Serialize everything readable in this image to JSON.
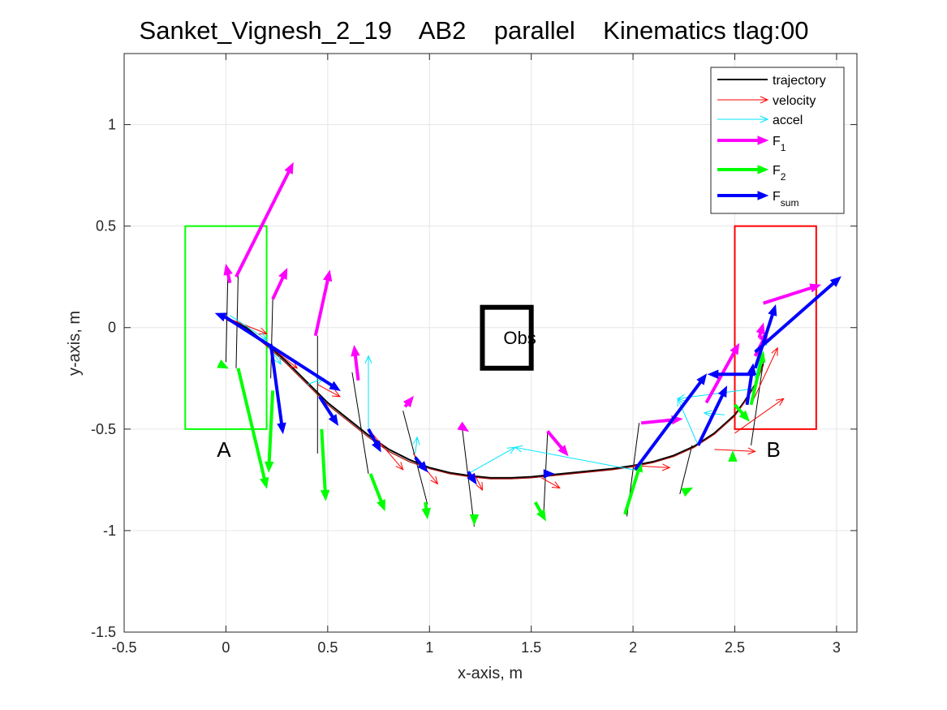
{
  "chart_data": {
    "type": "line",
    "title": "Sanket_Vignesh_2_19    AB2    parallel    Kinematics tlag:00",
    "xlabel": "x-axis, m",
    "ylabel": "y-axis, m",
    "xlim": [
      -0.5,
      3.1
    ],
    "ylim": [
      -1.5,
      1.35
    ],
    "xticks": [
      -0.5,
      0,
      0.5,
      1,
      1.5,
      2,
      2.5,
      3
    ],
    "yticks": [
      -1.5,
      -1,
      -0.5,
      0,
      0.5,
      1
    ],
    "xtick_labels": [
      "-0.5",
      "0",
      "0.5",
      "1",
      "1.5",
      "2",
      "2.5",
      "3"
    ],
    "ytick_labels": [
      "-1.5",
      "-1",
      "-0.5",
      "0",
      "0.5",
      "1"
    ],
    "grid": true,
    "legend": {
      "placement": "top-right",
      "entries": [
        {
          "name": "trajectory",
          "sub": "",
          "color": "#000000",
          "style": "line"
        },
        {
          "name": "velocity",
          "sub": "",
          "color": "#ff0000",
          "style": "thin-arrow"
        },
        {
          "name": "accel",
          "sub": "",
          "color": "#00e5ff",
          "style": "thin-arrow"
        },
        {
          "name": "F",
          "sub": "1",
          "color": "#ff00ff",
          "style": "thick-arrow"
        },
        {
          "name": "F",
          "sub": "2",
          "color": "#00ff00",
          "style": "thick-arrow"
        },
        {
          "name": "F",
          "sub": "sum",
          "color": "#0000ff",
          "style": "thick-arrow"
        }
      ]
    },
    "regions": [
      {
        "label": "A",
        "color": "#00ff00",
        "x": [
          -0.2,
          0.2
        ],
        "y": [
          -0.5,
          0.5
        ],
        "label_pos": [
          -0.01,
          -0.6
        ]
      },
      {
        "label": "B",
        "color": "#ff0000",
        "x": [
          2.5,
          2.9
        ],
        "y": [
          -0.5,
          0.5
        ],
        "label_pos": [
          2.69,
          -0.6
        ]
      }
    ],
    "obstacle": {
      "label": "Obs",
      "x": [
        1.26,
        1.5
      ],
      "y": [
        -0.2,
        0.1
      ],
      "color": "#000000"
    },
    "series": [
      {
        "name": "trajectory",
        "color": "#000000",
        "x": [
          0.0,
          0.1,
          0.2,
          0.3,
          0.4,
          0.5,
          0.6,
          0.7,
          0.8,
          0.9,
          1.0,
          1.1,
          1.2,
          1.3,
          1.4,
          1.5,
          1.6,
          1.7,
          1.8,
          1.9,
          2.0,
          2.1,
          2.2,
          2.3,
          2.4,
          2.5,
          2.55,
          2.6,
          2.64
        ],
        "y": [
          0.05,
          0.0,
          -0.08,
          -0.17,
          -0.27,
          -0.37,
          -0.45,
          -0.53,
          -0.6,
          -0.65,
          -0.69,
          -0.715,
          -0.73,
          -0.74,
          -0.74,
          -0.735,
          -0.725,
          -0.715,
          -0.705,
          -0.695,
          -0.68,
          -0.66,
          -0.63,
          -0.585,
          -0.52,
          -0.43,
          -0.36,
          -0.28,
          -0.18
        ]
      },
      {
        "name": "trajectory (velocity-colored)",
        "color": "#a01010",
        "x": [
          0.0,
          0.1,
          0.2,
          0.3,
          0.4,
          0.5,
          0.6,
          0.7,
          0.8,
          0.9,
          1.0,
          1.1,
          1.2,
          1.3,
          1.4,
          1.5,
          1.6,
          1.7,
          1.8,
          1.9,
          2.0,
          2.1,
          2.2,
          2.3,
          2.4,
          2.5,
          2.55,
          2.6,
          2.64
        ],
        "y": [
          0.04,
          -0.01,
          -0.09,
          -0.18,
          -0.28,
          -0.38,
          -0.46,
          -0.54,
          -0.61,
          -0.66,
          -0.695,
          -0.72,
          -0.735,
          -0.745,
          -0.745,
          -0.74,
          -0.73,
          -0.72,
          -0.71,
          -0.7,
          -0.685,
          -0.665,
          -0.635,
          -0.59,
          -0.525,
          -0.435,
          -0.365,
          -0.285,
          -0.185
        ]
      }
    ],
    "thin_sticks": [
      {
        "x": [
          0.01,
          0.0
        ],
        "y": [
          0.28,
          -0.17
        ]
      },
      {
        "x": [
          0.06,
          0.05
        ],
        "y": [
          0.26,
          -0.2
        ]
      },
      {
        "x": [
          0.23,
          0.22
        ],
        "y": [
          0.14,
          -0.25
        ]
      },
      {
        "x": [
          0.45,
          0.45
        ],
        "y": [
          -0.04,
          -0.62
        ]
      },
      {
        "x": [
          0.62,
          0.7
        ],
        "y": [
          -0.22,
          -0.72
        ]
      },
      {
        "x": [
          0.87,
          0.99
        ],
        "y": [
          -0.41,
          -0.87
        ]
      },
      {
        "x": [
          1.16,
          1.22
        ],
        "y": [
          -0.49,
          -0.98
        ]
      },
      {
        "x": [
          1.58,
          1.56
        ],
        "y": [
          -0.52,
          -0.94
        ]
      },
      {
        "x": [
          2.03,
          1.97
        ],
        "y": [
          -0.47,
          -0.93
        ]
      },
      {
        "x": [
          2.29,
          2.23
        ],
        "y": [
          -0.58,
          -0.82
        ]
      },
      {
        "x": [
          2.64,
          2.58
        ],
        "y": [
          -0.17,
          -0.58
        ]
      }
    ],
    "arrows": {
      "velocity": {
        "color": "#ff0000",
        "width": 1,
        "items": [
          {
            "x0": 0.0,
            "y0": 0.05,
            "x1": 0.2,
            "y1": -0.03
          },
          {
            "x0": 0.2,
            "y0": -0.08,
            "x1": 0.35,
            "y1": -0.2
          },
          {
            "x0": 0.45,
            "y0": -0.28,
            "x1": 0.56,
            "y1": -0.34
          },
          {
            "x0": 0.7,
            "y0": -0.5,
            "x1": 0.87,
            "y1": -0.7
          },
          {
            "x0": 0.92,
            "y0": -0.62,
            "x1": 1.04,
            "y1": -0.77
          },
          {
            "x0": 1.22,
            "y0": -0.72,
            "x1": 1.26,
            "y1": -0.8
          },
          {
            "x0": 1.55,
            "y0": -0.74,
            "x1": 1.64,
            "y1": -0.79
          },
          {
            "x0": 2.0,
            "y0": -0.68,
            "x1": 2.18,
            "y1": -0.69
          },
          {
            "x0": 2.4,
            "y0": -0.6,
            "x1": 2.6,
            "y1": -0.61
          },
          {
            "x0": 2.5,
            "y0": -0.52,
            "x1": 2.74,
            "y1": -0.35
          },
          {
            "x0": 2.58,
            "y0": -0.38,
            "x1": 2.71,
            "y1": -0.1
          }
        ]
      },
      "accel": {
        "color": "#00e5ff",
        "width": 1,
        "items": [
          {
            "x0": 0.02,
            "y0": 0.06,
            "x1": 0.2,
            "y1": -0.06
          },
          {
            "x0": 0.2,
            "y0": -0.08,
            "x1": 0.27,
            "y1": -0.18
          },
          {
            "x0": 0.4,
            "y0": -0.28,
            "x1": 0.48,
            "y1": -0.25
          },
          {
            "x0": 0.7,
            "y0": -0.5,
            "x1": 0.7,
            "y1": -0.14
          },
          {
            "x0": 0.93,
            "y0": -0.62,
            "x1": 0.94,
            "y1": -0.54
          },
          {
            "x0": 1.19,
            "y0": -0.72,
            "x1": 1.42,
            "y1": -0.59
          },
          {
            "x0": 2.0,
            "y0": -0.7,
            "x1": 1.42,
            "y1": -0.59
          },
          {
            "x0": 2.32,
            "y0": -0.58,
            "x1": 2.22,
            "y1": -0.35
          },
          {
            "x0": 2.6,
            "y0": -0.3,
            "x1": 2.22,
            "y1": -0.35
          },
          {
            "x0": 2.45,
            "y0": -0.43,
            "x1": 2.35,
            "y1": -0.42
          },
          {
            "x0": 2.6,
            "y0": -0.25,
            "x1": 2.65,
            "y1": -0.05
          }
        ]
      },
      "F1": {
        "color": "#ff00ff",
        "width": 4,
        "items": [
          {
            "x0": 0.02,
            "y0": 0.22,
            "x1": 0.0,
            "y1": 0.31
          },
          {
            "x0": 0.05,
            "y0": 0.25,
            "x1": 0.33,
            "y1": 0.81
          },
          {
            "x0": 0.23,
            "y0": 0.14,
            "x1": 0.3,
            "y1": 0.29
          },
          {
            "x0": 0.44,
            "y0": -0.04,
            "x1": 0.51,
            "y1": 0.28
          },
          {
            "x0": 0.65,
            "y0": -0.26,
            "x1": 0.63,
            "y1": -0.09
          },
          {
            "x0": 0.88,
            "y0": -0.39,
            "x1": 0.92,
            "y1": -0.34
          },
          {
            "x0": 1.16,
            "y0": -0.49,
            "x1": 1.19,
            "y1": -0.51
          },
          {
            "x0": 1.58,
            "y0": -0.51,
            "x1": 1.68,
            "y1": -0.63
          },
          {
            "x0": 2.04,
            "y0": -0.47,
            "x1": 2.24,
            "y1": -0.45
          },
          {
            "x0": 2.36,
            "y0": -0.37,
            "x1": 2.52,
            "y1": -0.08
          },
          {
            "x0": 2.64,
            "y0": 0.12,
            "x1": 2.92,
            "y1": 0.21
          },
          {
            "x0": 2.6,
            "y0": -0.14,
            "x1": 2.66,
            "y1": -0.02
          },
          {
            "x0": 2.62,
            "y0": -0.05,
            "x1": 2.64,
            "y1": 0.02
          }
        ]
      },
      "F2": {
        "color": "#00ff00",
        "width": 4,
        "items": [
          {
            "x0": -0.01,
            "y0": -0.19,
            "x1": 0.01,
            "y1": -0.2
          },
          {
            "x0": 0.06,
            "y0": -0.2,
            "x1": 0.2,
            "y1": -0.79
          },
          {
            "x0": 0.23,
            "y0": -0.31,
            "x1": 0.21,
            "y1": -0.71
          },
          {
            "x0": 0.47,
            "y0": -0.5,
            "x1": 0.49,
            "y1": -0.85
          },
          {
            "x0": 0.71,
            "y0": -0.72,
            "x1": 0.78,
            "y1": -0.9
          },
          {
            "x0": 0.98,
            "y0": -0.86,
            "x1": 0.99,
            "y1": -0.94
          },
          {
            "x0": 1.22,
            "y0": -0.95,
            "x1": 1.22,
            "y1": -0.97
          },
          {
            "x0": 1.52,
            "y0": -0.86,
            "x1": 1.57,
            "y1": -0.95
          },
          {
            "x0": 1.96,
            "y0": -0.92,
            "x1": 2.04,
            "y1": -0.66
          },
          {
            "x0": 2.25,
            "y0": -0.81,
            "x1": 2.29,
            "y1": -0.79
          },
          {
            "x0": 2.49,
            "y0": -0.63,
            "x1": 2.49,
            "y1": -0.61
          },
          {
            "x0": 2.5,
            "y0": -0.38,
            "x1": 2.57,
            "y1": -0.46
          },
          {
            "x0": 2.58,
            "y0": -0.38,
            "x1": 2.64,
            "y1": -0.12
          }
        ]
      },
      "Fsum": {
        "color": "#0000ff",
        "width": 4,
        "items": [
          {
            "x0": 0.0,
            "y0": 0.05,
            "x1": -0.05,
            "y1": 0.07
          },
          {
            "x0": 0.0,
            "y0": 0.05,
            "x1": 0.56,
            "y1": -0.31
          },
          {
            "x0": 0.22,
            "y0": -0.08,
            "x1": 0.28,
            "y1": -0.52
          },
          {
            "x0": 0.46,
            "y0": -0.34,
            "x1": 0.55,
            "y1": -0.48
          },
          {
            "x0": 0.7,
            "y0": -0.5,
            "x1": 0.76,
            "y1": -0.61
          },
          {
            "x0": 0.93,
            "y0": -0.64,
            "x1": 0.99,
            "y1": -0.71
          },
          {
            "x0": 1.19,
            "y0": -0.71,
            "x1": 1.23,
            "y1": -0.77
          },
          {
            "x0": 1.58,
            "y0": -0.72,
            "x1": 1.61,
            "y1": -0.72
          },
          {
            "x0": 2.01,
            "y0": -0.7,
            "x1": 2.36,
            "y1": -0.23
          },
          {
            "x0": 2.32,
            "y0": -0.58,
            "x1": 2.46,
            "y1": -0.29
          },
          {
            "x0": 2.6,
            "y0": -0.23,
            "x1": 2.37,
            "y1": -0.23
          },
          {
            "x0": 2.56,
            "y0": -0.38,
            "x1": 2.59,
            "y1": -0.18
          },
          {
            "x0": 2.6,
            "y0": -0.2,
            "x1": 2.7,
            "y1": 0.11
          },
          {
            "x0": 2.6,
            "y0": -0.12,
            "x1": 3.02,
            "y1": 0.25
          }
        ]
      }
    }
  }
}
